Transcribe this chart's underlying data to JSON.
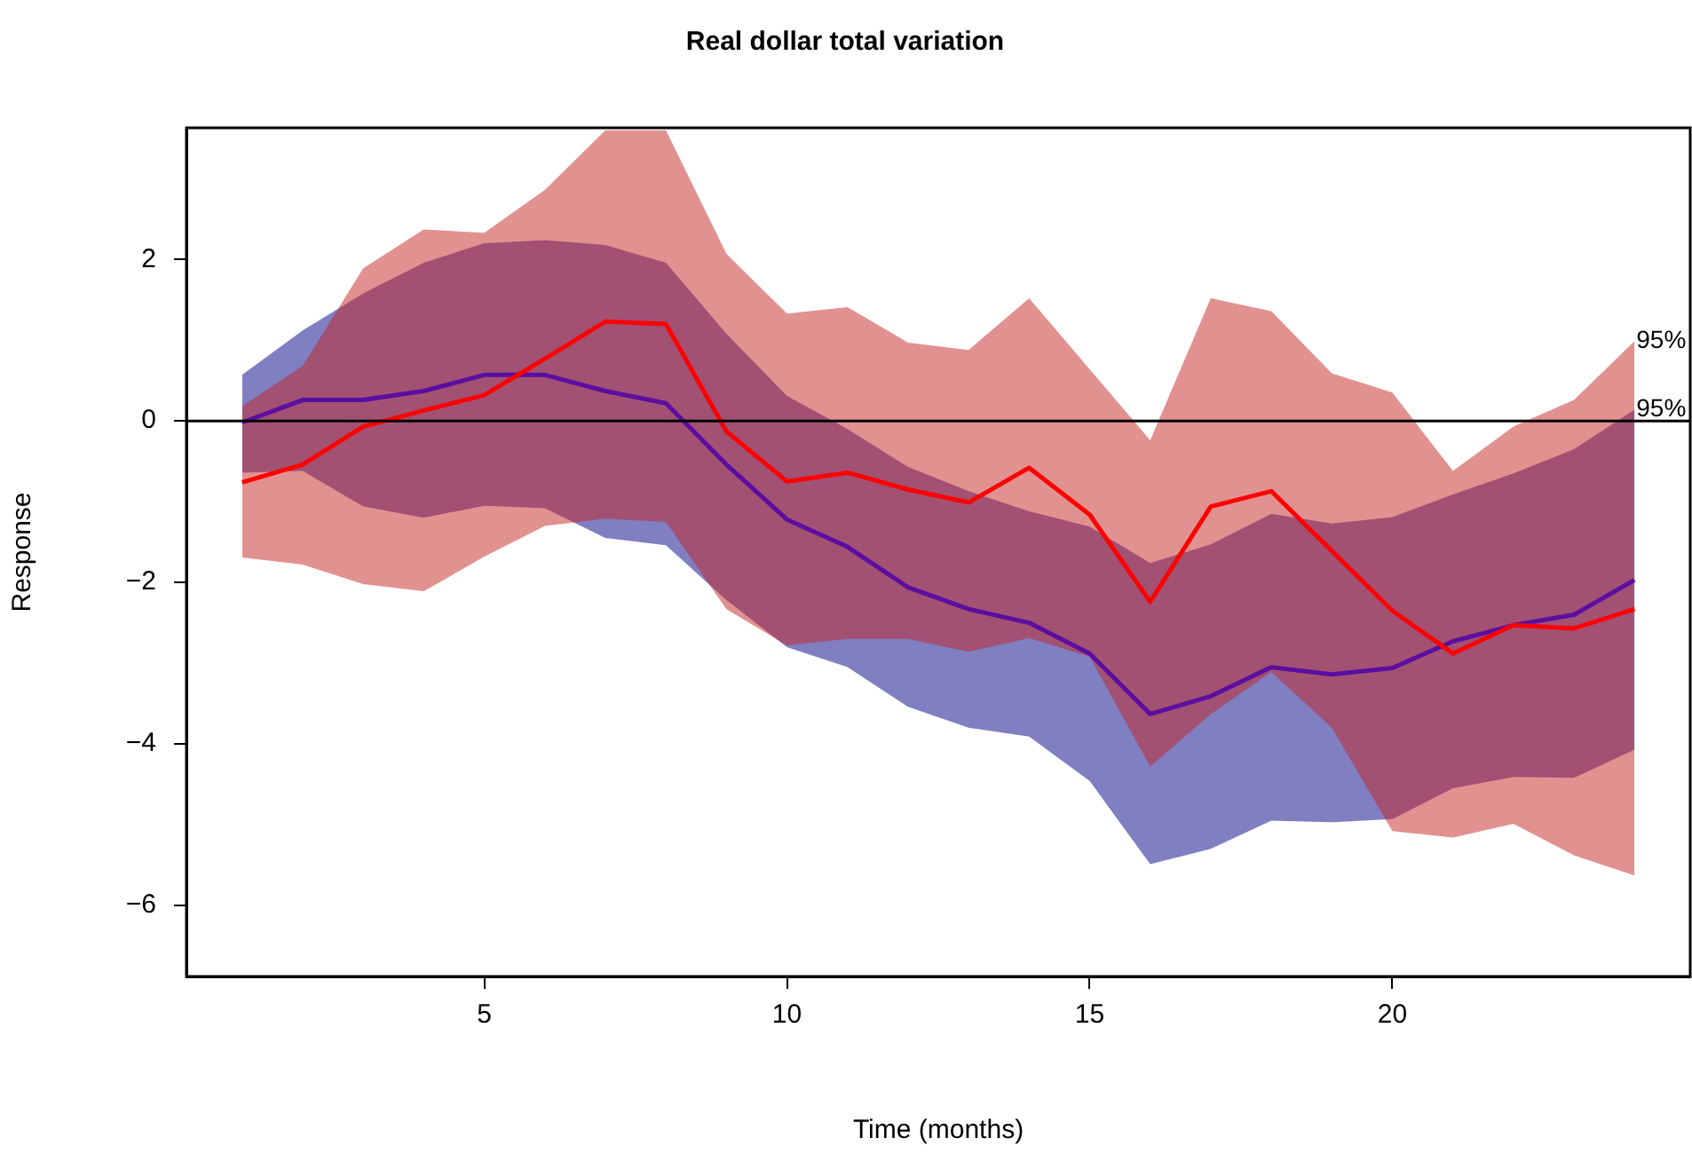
{
  "chart_data": {
    "type": "line",
    "title": "Real dollar total variation",
    "xlabel": "Time (months)",
    "ylabel": "Response",
    "x": [
      1,
      2,
      3,
      4,
      5,
      6,
      7,
      8,
      9,
      10,
      11,
      12,
      13,
      14,
      15,
      16,
      17,
      18,
      19,
      20,
      21,
      22,
      23,
      24
    ],
    "xlim": [
      0.08,
      24.92
    ],
    "ylim": [
      -6.88,
      3.63
    ],
    "xticks": [
      5,
      10,
      15,
      20
    ],
    "yticks": [
      -6,
      -4,
      -2,
      0,
      2
    ],
    "series": [
      {
        "color": "#5b0ea0",
        "values": [
          -0.02,
          0.26,
          0.26,
          0.37,
          0.57,
          0.57,
          0.37,
          0.22,
          -0.54,
          -1.22,
          -1.56,
          -2.06,
          -2.33,
          -2.5,
          -2.88,
          -3.63,
          -3.41,
          -3.05,
          -3.14,
          -3.06,
          -2.73,
          -2.53,
          -2.4,
          -1.97
        ],
        "upper": [
          0.57,
          1.12,
          1.58,
          1.96,
          2.2,
          2.24,
          2.18,
          1.96,
          1.08,
          0.31,
          -0.1,
          -0.57,
          -0.87,
          -1.12,
          -1.31,
          -1.76,
          -1.53,
          -1.15,
          -1.27,
          -1.19,
          -0.91,
          -0.65,
          -0.35,
          0.14
        ],
        "lower": [
          -0.64,
          -0.62,
          -1.06,
          -1.2,
          -1.05,
          -1.08,
          -1.45,
          -1.54,
          -2.22,
          -2.8,
          -3.05,
          -3.54,
          -3.8,
          -3.91,
          -4.46,
          -5.49,
          -5.3,
          -4.95,
          -4.97,
          -4.93,
          -4.55,
          -4.41,
          -4.42,
          -4.07
        ]
      },
      {
        "color": "#ff0000",
        "values": [
          -0.76,
          -0.54,
          -0.07,
          0.13,
          0.32,
          0.77,
          1.23,
          1.2,
          -0.13,
          -0.75,
          -0.64,
          -0.85,
          -1.01,
          -0.58,
          -1.16,
          -2.24,
          -1.06,
          -0.87,
          -1.61,
          -2.35,
          -2.88,
          -2.53,
          -2.57,
          -2.33
        ],
        "upper": [
          0.18,
          0.68,
          1.89,
          2.37,
          2.33,
          2.86,
          3.6,
          3.6,
          2.07,
          1.33,
          1.41,
          0.97,
          0.88,
          1.52,
          0.64,
          -0.24,
          1.52,
          1.36,
          0.59,
          0.35,
          -0.62,
          -0.07,
          0.26,
          0.99
        ],
        "lower": [
          -1.69,
          -1.78,
          -2.02,
          -2.11,
          -1.68,
          -1.3,
          -1.21,
          -1.25,
          -2.33,
          -2.78,
          -2.7,
          -2.7,
          -2.86,
          -2.69,
          -2.92,
          -4.28,
          -3.63,
          -3.11,
          -3.8,
          -5.08,
          -5.16,
          -4.99,
          -5.38,
          -5.63
        ]
      }
    ],
    "ref_lines": [
      {
        "axis": "y",
        "value": 0,
        "color": "#000000"
      }
    ],
    "annotations": [
      {
        "text": "95%",
        "x": 24,
        "y": 0.99
      },
      {
        "text": "95%",
        "x": 24,
        "y": 0.14
      }
    ],
    "legend": false
  }
}
